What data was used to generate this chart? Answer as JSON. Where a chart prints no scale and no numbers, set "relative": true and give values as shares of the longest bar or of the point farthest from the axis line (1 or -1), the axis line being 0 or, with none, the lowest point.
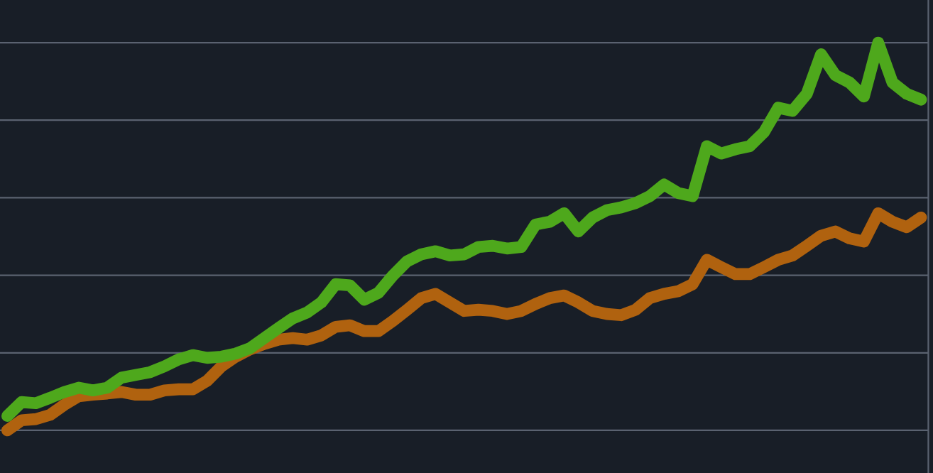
{
  "chart_data": {
    "type": "line",
    "relative": true,
    "grid": "y",
    "marker": "none",
    "line_style": "solid",
    "categories": [
      null,
      null,
      null,
      null,
      null,
      null,
      null,
      null,
      null,
      null,
      null,
      null,
      null,
      null,
      null,
      null,
      null,
      null,
      null,
      null,
      null,
      null,
      null,
      null,
      null,
      null,
      null,
      null,
      null,
      null,
      null,
      null,
      null,
      null,
      null,
      null,
      null,
      null,
      null,
      null,
      null,
      null,
      null,
      null,
      null,
      null,
      null,
      null,
      null,
      null,
      null,
      null,
      null,
      null,
      null,
      null,
      null,
      null,
      null,
      null,
      null,
      null,
      null,
      null,
      null
    ],
    "series": [
      {
        "color": "#4ea81c",
        "values": [
          0.037,
          0.073,
          0.07,
          0.084,
          0.099,
          0.11,
          0.103,
          0.11,
          0.136,
          0.143,
          0.15,
          0.165,
          0.183,
          0.194,
          0.187,
          0.19,
          0.198,
          0.212,
          0.238,
          0.264,
          0.289,
          0.304,
          0.33,
          0.377,
          0.374,
          0.337,
          0.355,
          0.399,
          0.436,
          0.454,
          0.462,
          0.451,
          0.454,
          0.473,
          0.476,
          0.469,
          0.473,
          0.531,
          0.538,
          0.56,
          0.513,
          0.549,
          0.568,
          0.575,
          0.586,
          0.604,
          0.634,
          0.612,
          0.604,
          0.733,
          0.714,
          0.725,
          0.733,
          0.769,
          0.832,
          0.824,
          0.868,
          0.97,
          0.916,
          0.897,
          0.861,
          1.0,
          0.897,
          0.868,
          0.853
        ]
      },
      {
        "color": "#b0620f",
        "values": [
          0,
          0.026,
          0.029,
          0.04,
          0.066,
          0.088,
          0.092,
          0.095,
          0.099,
          0.092,
          0.092,
          0.103,
          0.106,
          0.106,
          0.128,
          0.165,
          0.19,
          0.209,
          0.223,
          0.234,
          0.238,
          0.234,
          0.245,
          0.267,
          0.271,
          0.256,
          0.256,
          0.282,
          0.311,
          0.341,
          0.352,
          0.33,
          0.308,
          0.311,
          0.308,
          0.3,
          0.308,
          0.326,
          0.341,
          0.348,
          0.33,
          0.308,
          0.3,
          0.297,
          0.311,
          0.341,
          0.352,
          0.359,
          0.377,
          0.44,
          0.421,
          0.403,
          0.403,
          0.421,
          0.44,
          0.451,
          0.476,
          0.502,
          0.513,
          0.495,
          0.487,
          0.56,
          0.538,
          0.524,
          0.549
        ]
      }
    ]
  }
}
